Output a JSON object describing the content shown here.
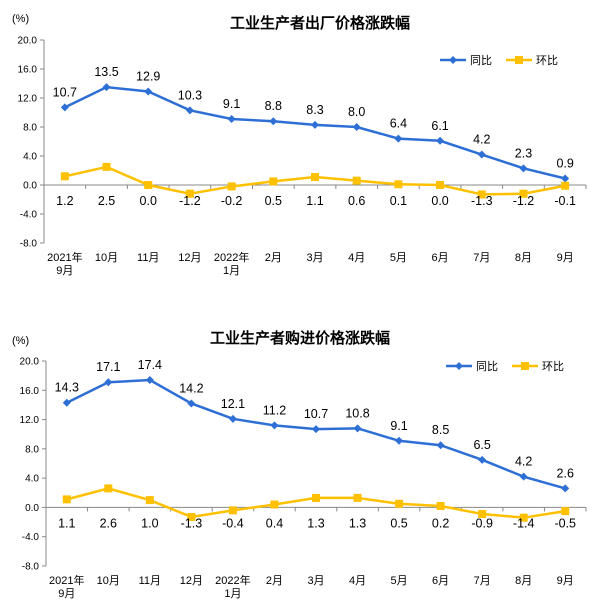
{
  "chart_data": [
    {
      "type": "line",
      "title": "工业生产者出厂价格涨跌幅",
      "unit": "(%)",
      "categories": [
        [
          "2021年",
          "9月"
        ],
        [
          "10月"
        ],
        [
          "11月"
        ],
        [
          "12月"
        ],
        [
          "2022年",
          "1月"
        ],
        [
          "2月"
        ],
        [
          "3月"
        ],
        [
          "4月"
        ],
        [
          "5月"
        ],
        [
          "6月"
        ],
        [
          "7月"
        ],
        [
          "8月"
        ],
        [
          "9月"
        ]
      ],
      "yticks": [
        "20.0",
        "16.0",
        "12.0",
        "8.0",
        "4.0",
        "0.0",
        "-4.0",
        "-8.0"
      ],
      "ylim": [
        -8,
        20
      ],
      "grid": false,
      "legend_position": "top-right",
      "series": [
        {
          "name": "同比",
          "color": "#2e6fd6",
          "values": [
            10.7,
            13.5,
            12.9,
            10.3,
            9.1,
            8.8,
            8.3,
            8.0,
            6.4,
            6.1,
            4.2,
            2.3,
            0.9
          ],
          "labels": [
            "10.7",
            "13.5",
            "12.9",
            "10.3",
            "9.1",
            "8.8",
            "8.3",
            "8.0",
            "6.4",
            "6.1",
            "4.2",
            "2.3",
            "0.9"
          ]
        },
        {
          "name": "环比",
          "color": "#ffc000",
          "values": [
            1.2,
            2.5,
            0.0,
            -1.2,
            -0.2,
            0.5,
            1.1,
            0.6,
            0.1,
            0.0,
            -1.3,
            -1.2,
            -0.1
          ],
          "labels": [
            "1.2",
            "2.5",
            "0.0",
            "-1.2",
            "-0.2",
            "0.5",
            "1.1",
            "0.6",
            "0.1",
            "0.0",
            "-1.3",
            "-1.2",
            "-0.1"
          ]
        }
      ]
    },
    {
      "type": "line",
      "title": "工业生产者购进价格涨跌幅",
      "unit": "(%)",
      "categories": [
        [
          "2021年",
          "9月"
        ],
        [
          "10月"
        ],
        [
          "11月"
        ],
        [
          "12月"
        ],
        [
          "2022年",
          "1月"
        ],
        [
          "2月"
        ],
        [
          "3月"
        ],
        [
          "4月"
        ],
        [
          "5月"
        ],
        [
          "6月"
        ],
        [
          "7月"
        ],
        [
          "8月"
        ],
        [
          "9月"
        ]
      ],
      "yticks": [
        "20.0",
        "16.0",
        "12.0",
        "8.0",
        "4.0",
        "0.0",
        "-4.0",
        "-8.0"
      ],
      "ylim": [
        -8,
        20
      ],
      "grid": false,
      "legend_position": "top-right",
      "series": [
        {
          "name": "同比",
          "color": "#2e6fd6",
          "values": [
            14.3,
            17.1,
            17.4,
            14.2,
            12.1,
            11.2,
            10.7,
            10.8,
            9.1,
            8.5,
            6.5,
            4.2,
            2.6
          ],
          "labels": [
            "14.3",
            "17.1",
            "17.4",
            "14.2",
            "12.1",
            "11.2",
            "10.7",
            "10.8",
            "9.1",
            "8.5",
            "6.5",
            "4.2",
            "2.6"
          ]
        },
        {
          "name": "环比",
          "color": "#ffc000",
          "values": [
            1.1,
            2.6,
            1.0,
            -1.3,
            -0.4,
            0.4,
            1.3,
            1.3,
            0.5,
            0.2,
            -0.9,
            -1.4,
            -0.5
          ],
          "labels": [
            "1.1",
            "2.6",
            "1.0",
            "-1.3",
            "-0.4",
            "0.4",
            "1.3",
            "1.3",
            "0.5",
            "0.2",
            "-0.9",
            "-1.4",
            "-0.5"
          ]
        }
      ]
    }
  ]
}
